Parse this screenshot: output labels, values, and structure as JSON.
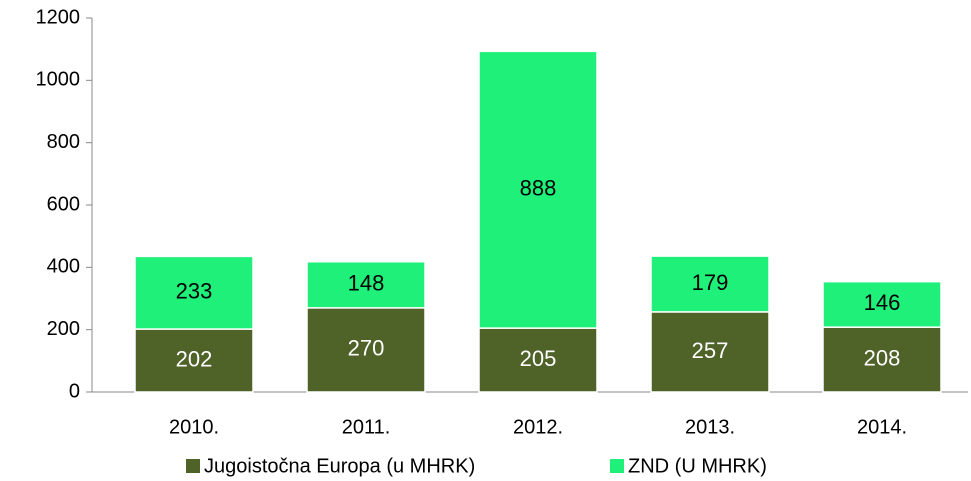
{
  "chart_data": {
    "type": "stacked-bar",
    "categories": [
      "2010.",
      "2011.",
      "2012.",
      "2013.",
      "2014."
    ],
    "series": [
      {
        "name": "Jugoistočna Europa (u MHRK)",
        "color": "#4f6228",
        "values": [
          202,
          270,
          205,
          257,
          208
        ]
      },
      {
        "name": "ZND (U MHRK)",
        "color": "#1ef07a",
        "values": [
          233,
          148,
          888,
          179,
          146
        ]
      }
    ],
    "ylim": [
      0,
      1200
    ],
    "yticks": [
      0,
      200,
      400,
      600,
      800,
      1000,
      1200
    ],
    "grid": false,
    "legend": "bottom"
  }
}
